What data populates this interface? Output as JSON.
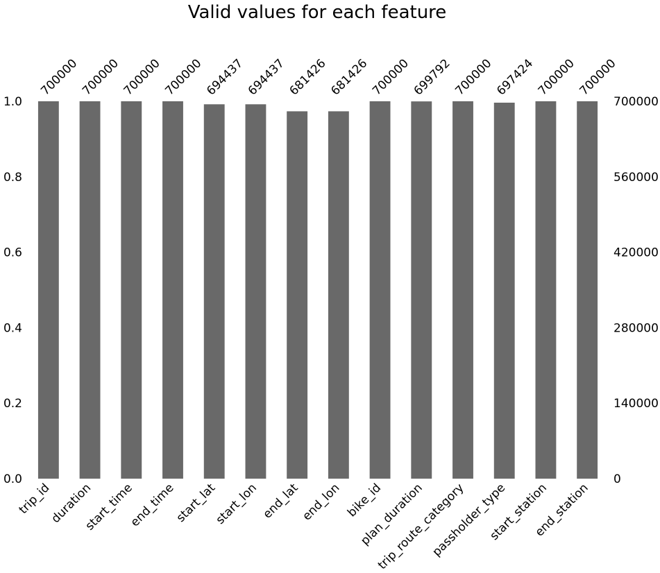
{
  "chart_data": {
    "type": "bar",
    "title": "Valid values for each feature",
    "categories": [
      "trip_id",
      "duration",
      "start_time",
      "end_time",
      "start_lat",
      "start_lon",
      "end_lat",
      "end_lon",
      "bike_id",
      "plan_duration",
      "trip_route_category",
      "passholder_type",
      "start_station",
      "end_station"
    ],
    "values": [
      700000,
      700000,
      700000,
      700000,
      694437,
      694437,
      681426,
      681426,
      700000,
      699792,
      700000,
      697424,
      700000,
      700000
    ],
    "value_labels": [
      "700000",
      "700000",
      "700000",
      "700000",
      "694437",
      "694437",
      "681426",
      "681426",
      "700000",
      "699792",
      "700000",
      "697424",
      "700000",
      "700000"
    ],
    "total": 700000,
    "ylim": [
      0,
      1.0
    ],
    "y_ticks_left": [
      "0.0",
      "0.2",
      "0.4",
      "0.6",
      "0.8",
      "1.0"
    ],
    "y_ticks_right": [
      "0",
      "140000",
      "280000",
      "420000",
      "560000",
      "700000"
    ],
    "xlabel": "",
    "ylabel": "",
    "grid": false,
    "bar_color": "#696969"
  }
}
